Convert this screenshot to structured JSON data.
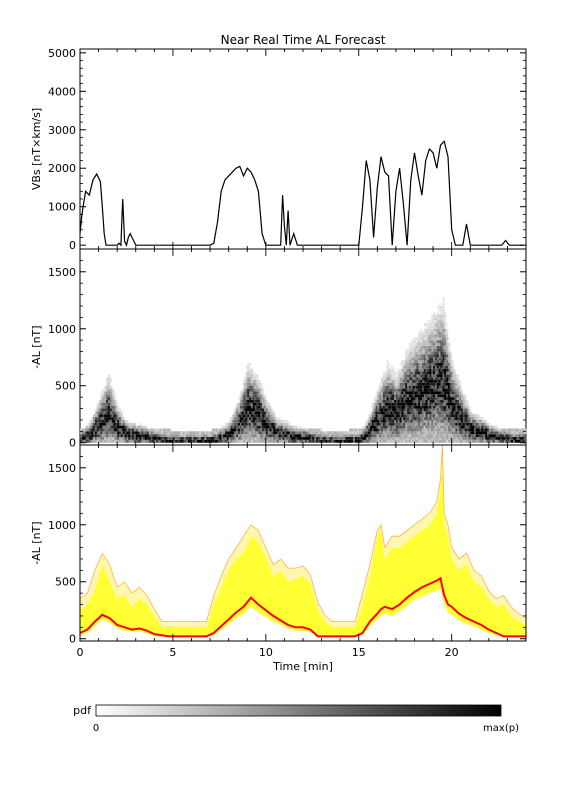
{
  "title": "Near Real Time AL Forecast",
  "chart_data": [
    {
      "type": "line",
      "name": "vbs-panel",
      "ylabel": "VBs [nT×km/s]",
      "xlim": [
        0,
        24
      ],
      "ylim": [
        -100,
        5100
      ],
      "yticks": [
        0,
        1000,
        2000,
        3000,
        4000,
        5000
      ],
      "x": [
        0,
        0.1,
        0.3,
        0.5,
        0.7,
        0.9,
        1.1,
        1.2,
        1.3,
        1.4,
        1.5,
        1.6,
        1.65,
        1.8,
        2.0,
        2.1,
        2.2,
        2.3,
        2.4,
        2.5,
        2.6,
        2.7,
        3.0,
        3.4,
        3.8,
        4.2,
        5,
        6,
        6.5,
        6.8,
        7.0,
        7.2,
        7.4,
        7.6,
        7.8,
        8.0,
        8.2,
        8.4,
        8.6,
        8.8,
        9.0,
        9.2,
        9.4,
        9.6,
        9.8,
        10.0,
        10.2,
        10.4,
        10.6,
        10.8,
        10.9,
        11.0,
        11.1,
        11.2,
        11.3,
        11.5,
        11.7,
        11.9,
        12.1,
        12.3,
        12.6,
        13,
        14,
        14.8,
        15.0,
        15.2,
        15.4,
        15.6,
        15.8,
        16.0,
        16.2,
        16.4,
        16.6,
        16.8,
        17.0,
        17.2,
        17.4,
        17.6,
        17.8,
        18.0,
        18.2,
        18.4,
        18.6,
        18.8,
        19.0,
        19.2,
        19.4,
        19.6,
        19.8,
        20.0,
        20.2,
        20.4,
        20.6,
        20.8,
        21.0,
        21.2,
        21.4,
        21.6,
        22,
        22.4,
        22.7,
        22.9,
        23.1,
        23.5,
        23.9
      ],
      "y": [
        300,
        800,
        1400,
        1300,
        1700,
        1850,
        1650,
        1000,
        300,
        0,
        0,
        0,
        0,
        0,
        0,
        50,
        0,
        1200,
        100,
        0,
        200,
        300,
        0,
        0,
        0,
        0,
        0,
        0,
        0,
        0,
        0,
        50,
        600,
        1400,
        1700,
        1800,
        1900,
        2000,
        2050,
        1800,
        2000,
        1900,
        1700,
        1400,
        300,
        0,
        0,
        0,
        0,
        0,
        1300,
        500,
        0,
        900,
        0,
        300,
        0,
        0,
        0,
        0,
        0,
        0,
        0,
        0,
        0,
        1000,
        2200,
        1700,
        200,
        1500,
        2300,
        1900,
        1800,
        0,
        1400,
        2000,
        1100,
        0,
        1700,
        2400,
        1800,
        1300,
        2200,
        2500,
        2400,
        2000,
        2600,
        2700,
        2300,
        400,
        0,
        0,
        0,
        550,
        0,
        0,
        0,
        0,
        0,
        0,
        0,
        120,
        0,
        0,
        0
      ],
      "xlabel": ""
    },
    {
      "type": "heatmap",
      "name": "pdf-panel",
      "ylabel": "-AL [nT]",
      "xlim": [
        0,
        24
      ],
      "ylim": [
        -20,
        1700
      ],
      "yticks": [
        0,
        500,
        1000,
        1500
      ],
      "median_x": [
        0,
        0.5,
        1.0,
        1.5,
        2.0,
        2.5,
        3.0,
        3.5,
        4.0,
        4.5,
        5,
        6,
        7,
        7.5,
        8,
        8.5,
        9,
        9.5,
        10,
        10.5,
        11,
        11.5,
        12,
        12.5,
        13,
        14,
        15,
        15.5,
        16,
        16.5,
        17,
        17.5,
        18,
        18.5,
        19,
        19.5,
        20,
        20.5,
        21,
        21.5,
        22,
        22.5,
        23,
        23.5,
        24
      ],
      "median_y": [
        20,
        60,
        150,
        250,
        120,
        60,
        50,
        40,
        20,
        10,
        0,
        0,
        0,
        30,
        60,
        150,
        300,
        250,
        150,
        80,
        60,
        40,
        30,
        20,
        0,
        0,
        10,
        80,
        200,
        300,
        250,
        350,
        400,
        450,
        500,
        550,
        300,
        200,
        100,
        80,
        50,
        30,
        20,
        10,
        10
      ],
      "xlabel": ""
    },
    {
      "type": "area",
      "name": "forecast-panel",
      "xlabel": "Time [min]",
      "ylabel": "-AL [nT]",
      "xlim": [
        0,
        24
      ],
      "ylim": [
        -20,
        1700
      ],
      "xticks": [
        0,
        5,
        10,
        15,
        20
      ],
      "yticks": [
        0,
        500,
        1000,
        1500
      ],
      "x": [
        0,
        0.4,
        0.8,
        1.2,
        1.6,
        2.0,
        2.4,
        2.8,
        3.2,
        3.6,
        4.0,
        4.4,
        4.8,
        5.2,
        5.6,
        6.0,
        6.4,
        6.8,
        7.2,
        7.6,
        8.0,
        8.4,
        8.8,
        9.2,
        9.6,
        10.0,
        10.4,
        10.8,
        11.2,
        11.6,
        12.0,
        12.4,
        12.8,
        13.2,
        13.6,
        14.0,
        14.4,
        14.8,
        15.2,
        15.6,
        16.0,
        16.2,
        16.4,
        16.8,
        17.2,
        17.6,
        18.0,
        18.4,
        18.8,
        19.2,
        19.4,
        19.5,
        19.6,
        19.8,
        20.0,
        20.4,
        20.8,
        21.2,
        21.6,
        22.0,
        22.4,
        22.8,
        23.2,
        23.6,
        24.0
      ],
      "median": [
        50,
        80,
        150,
        210,
        180,
        120,
        100,
        80,
        90,
        70,
        40,
        30,
        20,
        20,
        20,
        20,
        20,
        20,
        50,
        110,
        170,
        230,
        280,
        360,
        300,
        250,
        200,
        160,
        120,
        100,
        100,
        80,
        20,
        20,
        20,
        20,
        20,
        20,
        50,
        150,
        220,
        260,
        280,
        260,
        300,
        360,
        410,
        450,
        480,
        510,
        530,
        450,
        380,
        300,
        280,
        220,
        180,
        150,
        120,
        80,
        50,
        20,
        20,
        20,
        20
      ],
      "band_low": [
        30,
        50,
        110,
        170,
        140,
        90,
        70,
        60,
        60,
        50,
        20,
        20,
        20,
        20,
        20,
        20,
        20,
        20,
        30,
        80,
        130,
        180,
        220,
        280,
        230,
        190,
        150,
        120,
        90,
        70,
        70,
        60,
        20,
        20,
        20,
        20,
        20,
        20,
        30,
        110,
        170,
        200,
        220,
        200,
        240,
        290,
        340,
        370,
        400,
        420,
        440,
        370,
        300,
        230,
        210,
        160,
        130,
        110,
        80,
        50,
        30,
        20,
        20,
        20,
        20
      ],
      "band_high": [
        250,
        300,
        420,
        650,
        500,
        350,
        380,
        280,
        350,
        300,
        200,
        100,
        100,
        100,
        100,
        100,
        100,
        100,
        300,
        450,
        600,
        700,
        750,
        900,
        850,
        720,
        550,
        600,
        500,
        520,
        550,
        480,
        250,
        150,
        100,
        100,
        100,
        100,
        300,
        550,
        900,
        950,
        700,
        800,
        800,
        850,
        900,
        950,
        1000,
        1100,
        1300,
        1700,
        1000,
        900,
        700,
        600,
        650,
        500,
        450,
        350,
        280,
        300,
        200,
        150,
        120
      ],
      "envelope_high": [
        350,
        400,
        600,
        750,
        650,
        450,
        500,
        400,
        450,
        380,
        260,
        150,
        150,
        150,
        150,
        150,
        150,
        150,
        380,
        550,
        700,
        800,
        900,
        1000,
        950,
        800,
        650,
        700,
        620,
        620,
        640,
        560,
        320,
        200,
        150,
        150,
        150,
        150,
        400,
        650,
        950,
        1000,
        800,
        900,
        900,
        950,
        1000,
        1050,
        1100,
        1200,
        1400,
        1700,
        1100,
        1000,
        800,
        700,
        750,
        600,
        550,
        420,
        350,
        380,
        280,
        220,
        180
      ]
    }
  ],
  "colorbar": {
    "label": "pdf",
    "min_label": "0",
    "max_label": "max(p)"
  },
  "colors": {
    "vbs_line": "#000000",
    "median_line": "#ff0000",
    "band_fill": "#ffff33",
    "envelope_fill": "#fff7b0",
    "envelope_line": "#ffb347"
  }
}
